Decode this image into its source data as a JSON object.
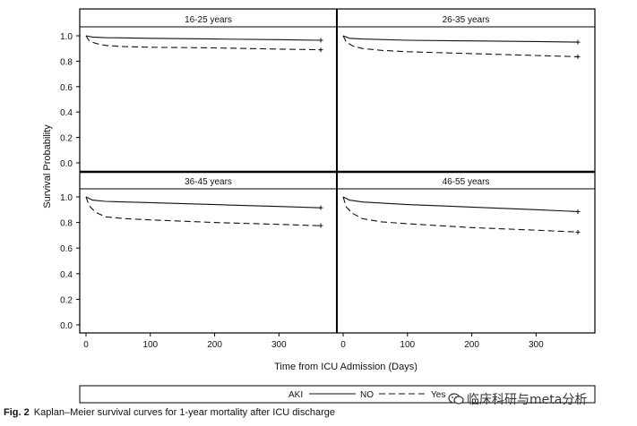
{
  "caption": {
    "label": "Fig. 2",
    "text": "Kaplan–Meier survival curves for 1-year mortality after ICU discharge"
  },
  "watermark": {
    "text": "临床科研与meta分析",
    "icon": "chat-bubble-icon"
  },
  "figure": {
    "ylabel": "Survival Probability",
    "xlabel": "Time from ICU Admission (Days)",
    "legend": {
      "title": "AKI",
      "entries": [
        "NO",
        "Yes"
      ]
    }
  },
  "chart_data": [
    {
      "type": "line",
      "title": "16-25 years",
      "xlabel": "Time from ICU Admission (Days)",
      "ylabel": "Survival Probability",
      "xlim": [
        0,
        365
      ],
      "ylim": [
        0,
        1
      ],
      "xticks": [
        0,
        100,
        200,
        300
      ],
      "yticks": [
        "0.0",
        "0.2",
        "0.4",
        "0.6",
        "0.8",
        "1.0"
      ],
      "series": [
        {
          "name": "NO",
          "style": "solid",
          "points": [
            [
              0,
              1.0
            ],
            [
              10,
              0.99
            ],
            [
              30,
              0.985
            ],
            [
              100,
              0.98
            ],
            [
              200,
              0.975
            ],
            [
              300,
              0.97
            ],
            [
              365,
              0.965
            ]
          ]
        },
        {
          "name": "Yes",
          "style": "dashed",
          "points": [
            [
              0,
              1.0
            ],
            [
              5,
              0.96
            ],
            [
              15,
              0.94
            ],
            [
              30,
              0.925
            ],
            [
              60,
              0.915
            ],
            [
              100,
              0.91
            ],
            [
              200,
              0.905
            ],
            [
              300,
              0.895
            ],
            [
              365,
              0.89
            ]
          ]
        }
      ]
    },
    {
      "type": "line",
      "title": "26-35 years",
      "xlabel": "Time from ICU Admission (Days)",
      "ylabel": "Survival Probability",
      "xlim": [
        0,
        365
      ],
      "ylim": [
        0,
        1
      ],
      "xticks": [
        0,
        100,
        200,
        300
      ],
      "yticks": [
        "0.0",
        "0.2",
        "0.4",
        "0.6",
        "0.8",
        "1.0"
      ],
      "series": [
        {
          "name": "NO",
          "style": "solid",
          "points": [
            [
              0,
              1.0
            ],
            [
              10,
              0.98
            ],
            [
              30,
              0.975
            ],
            [
              100,
              0.965
            ],
            [
              200,
              0.96
            ],
            [
              300,
              0.955
            ],
            [
              365,
              0.95
            ]
          ]
        },
        {
          "name": "Yes",
          "style": "dashed",
          "points": [
            [
              0,
              1.0
            ],
            [
              5,
              0.95
            ],
            [
              15,
              0.92
            ],
            [
              30,
              0.9
            ],
            [
              60,
              0.885
            ],
            [
              100,
              0.875
            ],
            [
              200,
              0.86
            ],
            [
              300,
              0.845
            ],
            [
              365,
              0.835
            ]
          ]
        }
      ]
    },
    {
      "type": "line",
      "title": "36-45 years",
      "xlabel": "Time from ICU Admission (Days)",
      "ylabel": "Survival Probability",
      "xlim": [
        0,
        365
      ],
      "ylim": [
        0,
        1
      ],
      "xticks": [
        0,
        100,
        200,
        300
      ],
      "yticks": [
        "0.0",
        "0.2",
        "0.4",
        "0.6",
        "0.8",
        "1.0"
      ],
      "series": [
        {
          "name": "NO",
          "style": "solid",
          "points": [
            [
              0,
              1.0
            ],
            [
              10,
              0.975
            ],
            [
              30,
              0.965
            ],
            [
              100,
              0.955
            ],
            [
              200,
              0.94
            ],
            [
              300,
              0.925
            ],
            [
              365,
              0.915
            ]
          ]
        },
        {
          "name": "Yes",
          "style": "dashed",
          "points": [
            [
              0,
              1.0
            ],
            [
              5,
              0.93
            ],
            [
              15,
              0.88
            ],
            [
              30,
              0.845
            ],
            [
              60,
              0.83
            ],
            [
              100,
              0.82
            ],
            [
              200,
              0.8
            ],
            [
              300,
              0.785
            ],
            [
              365,
              0.775
            ]
          ]
        }
      ]
    },
    {
      "type": "line",
      "title": "46-55 years",
      "xlabel": "Time from ICU Admission (Days)",
      "ylabel": "Survival Probability",
      "xlim": [
        0,
        365
      ],
      "ylim": [
        0,
        1
      ],
      "xticks": [
        0,
        100,
        200,
        300
      ],
      "yticks": [
        "0.0",
        "0.2",
        "0.4",
        "0.6",
        "0.8",
        "1.0"
      ],
      "series": [
        {
          "name": "NO",
          "style": "solid",
          "points": [
            [
              0,
              1.0
            ],
            [
              10,
              0.975
            ],
            [
              30,
              0.96
            ],
            [
              100,
              0.94
            ],
            [
              200,
              0.92
            ],
            [
              300,
              0.9
            ],
            [
              365,
              0.885
            ]
          ]
        },
        {
          "name": "Yes",
          "style": "dashed",
          "points": [
            [
              0,
              1.0
            ],
            [
              5,
              0.92
            ],
            [
              15,
              0.87
            ],
            [
              30,
              0.83
            ],
            [
              60,
              0.805
            ],
            [
              100,
              0.79
            ],
            [
              200,
              0.76
            ],
            [
              300,
              0.74
            ],
            [
              365,
              0.725
            ]
          ]
        }
      ]
    }
  ]
}
